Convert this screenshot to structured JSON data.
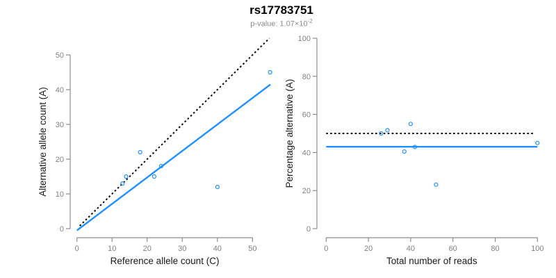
{
  "header": {
    "title": "rs17783751",
    "pvalue_text": "p-value: 1.07×10",
    "pvalue_exponent": "-2"
  },
  "colors": {
    "point": "#1E90FF",
    "fit_line": "#1E90FF",
    "expected_line": "#000000",
    "axis": "#8c8c8c",
    "tick_label": "#808080",
    "axis_label": "#1a1a1a",
    "title": "#000000",
    "subtitle": "#8c8c8c",
    "background": "#ffffff"
  },
  "chart_data": [
    {
      "type": "scatter",
      "panel": "allele-counts",
      "xlabel": "Reference allele count (C)",
      "ylabel": "Alternative allele count (A)",
      "xlim": [
        0,
        55
      ],
      "ylim": [
        0,
        55
      ],
      "xticks": [
        0,
        10,
        20,
        30,
        40,
        50
      ],
      "yticks": [
        0,
        10,
        20,
        30,
        40,
        50
      ],
      "grid": false,
      "legend": "none",
      "point_style": "open-circle",
      "points": [
        [
          13,
          13
        ],
        [
          14,
          15
        ],
        [
          18,
          22
        ],
        [
          22,
          15
        ],
        [
          24,
          18
        ],
        [
          40,
          12
        ],
        [
          55,
          45
        ]
      ],
      "lines": [
        {
          "name": "expected-identity",
          "style": "dashed",
          "color": "#000000",
          "from": [
            0.8,
            0.8
          ],
          "to": [
            54.8,
            54.8
          ]
        },
        {
          "name": "fitted-proportion",
          "style": "solid",
          "color": "#1E90FF",
          "from": [
            0,
            -0.5
          ],
          "to": [
            55.1,
            41.5
          ]
        }
      ]
    },
    {
      "type": "scatter",
      "panel": "percentage-vs-reads",
      "xlabel": "Total number of reads",
      "ylabel": "Percentage alternative (A)",
      "xlim": [
        0,
        100
      ],
      "ylim": [
        0,
        100
      ],
      "xticks": [
        0,
        20,
        40,
        60,
        80,
        100
      ],
      "yticks": [
        0,
        20,
        40,
        60,
        80,
        100
      ],
      "grid": false,
      "legend": "none",
      "point_style": "open-circle",
      "points": [
        [
          26,
          50
        ],
        [
          29,
          51.7
        ],
        [
          40,
          55
        ],
        [
          37,
          40.5
        ],
        [
          42,
          42.9
        ],
        [
          52,
          23.1
        ],
        [
          100,
          45
        ]
      ],
      "lines": [
        {
          "name": "expected-50pct",
          "style": "dashed",
          "color": "#000000",
          "from": [
            0,
            50
          ],
          "to": [
            98.5,
            50
          ]
        },
        {
          "name": "mean-percentage",
          "style": "solid",
          "color": "#1E90FF",
          "from": [
            0,
            43
          ],
          "to": [
            100,
            43
          ]
        }
      ]
    }
  ]
}
